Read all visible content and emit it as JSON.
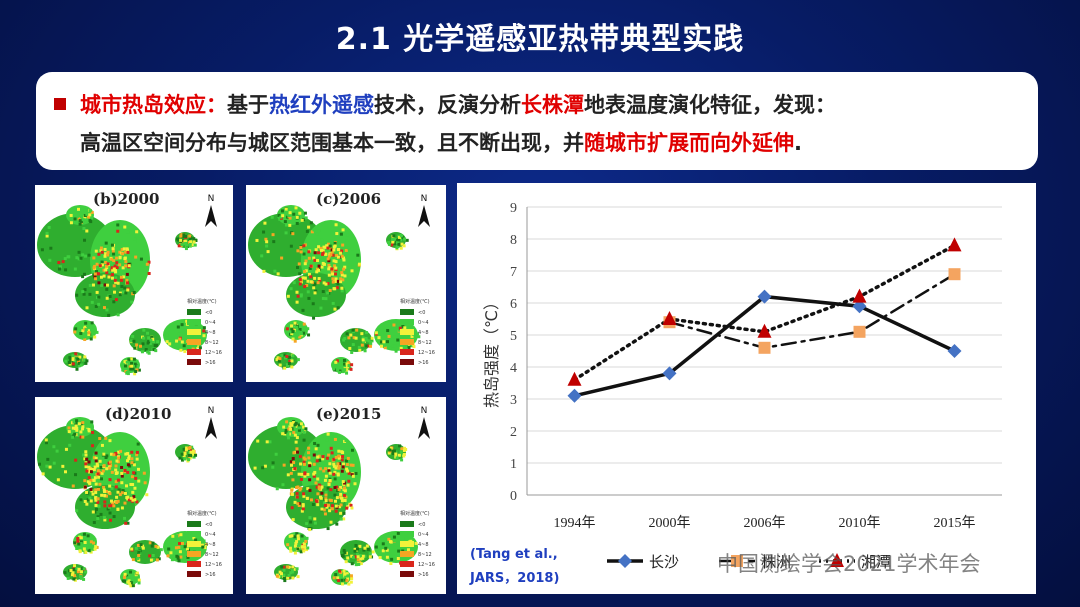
{
  "slide": {
    "title": "2.1  光学遥感亚热带典型实践",
    "bullet": {
      "line1": [
        {
          "t": "城市热岛效应：",
          "c": "red"
        },
        {
          "t": "基于",
          "c": ""
        },
        {
          "t": "热红外遥感",
          "c": "blue"
        },
        {
          "t": "技术，反演分析",
          "c": ""
        },
        {
          "t": "长株潭",
          "c": "red"
        },
        {
          "t": "地表温度演化特征，发现：",
          "c": ""
        }
      ],
      "line2": [
        {
          "t": "高温区空间分布与城区范围基本一致，且不断出现，并",
          "c": ""
        },
        {
          "t": "随城市扩展而向外延伸",
          "c": "red"
        },
        {
          "t": ".",
          "c": ""
        }
      ]
    },
    "citation": {
      "line1": "(Tang et al.,",
      "line2": "JARS，2018)"
    },
    "watermark": "中国测绘学会2021学术年会"
  },
  "maps": [
    {
      "label": "(b)2000",
      "year": 2000
    },
    {
      "label": "(c)2006",
      "year": 2006
    },
    {
      "label": "(d)2010",
      "year": 2010
    },
    {
      "label": "(e)2015",
      "year": 2015
    }
  ],
  "map_legend": {
    "title": "相对温度(℃)",
    "north": "N",
    "classes": [
      {
        "label": "<0",
        "color": "#1a7a1a"
      },
      {
        "label": "0~4",
        "color": "#3fcf3f"
      },
      {
        "label": "4~8",
        "color": "#f2f23a"
      },
      {
        "label": "8~12",
        "color": "#f5a623"
      },
      {
        "label": "12~16",
        "color": "#d9261c"
      },
      {
        "label": ">16",
        "color": "#7a0a0a"
      }
    ]
  },
  "chart_data": {
    "type": "line",
    "categories": [
      "1994年",
      "2000年",
      "2006年",
      "2010年",
      "2015年"
    ],
    "ylabel": "热岛强度（℃）",
    "ylim": [
      0,
      9
    ],
    "yticks": [
      "0",
      "1",
      "2",
      "3",
      "4",
      "5",
      "6",
      "7",
      "8",
      "9"
    ],
    "grid": true,
    "legend": "bottom",
    "series": [
      {
        "name": "长沙",
        "values": [
          3.1,
          3.8,
          6.2,
          5.9,
          4.5
        ],
        "color": "#4472c4",
        "marker": "diamond",
        "line": "solid"
      },
      {
        "name": "株洲",
        "values": [
          null,
          5.4,
          4.6,
          5.1,
          6.9
        ],
        "color": "#f4a460",
        "marker": "square",
        "line": "dashdot"
      },
      {
        "name": "湘潭",
        "values": [
          3.6,
          5.5,
          5.1,
          6.2,
          7.8
        ],
        "color": "#c00000",
        "marker": "triangle",
        "line": "dotted"
      }
    ]
  }
}
